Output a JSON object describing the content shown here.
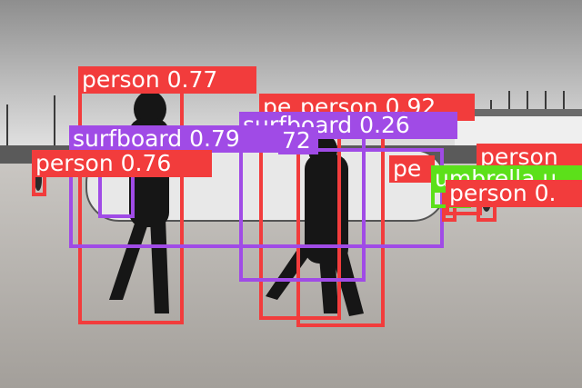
{
  "image": {
    "description_mode": "photo",
    "tone": "grayscale"
  },
  "colors": {
    "person": "#f23c3c",
    "surfboard": "#a04be6",
    "umbrella": "#5ce01a",
    "label_text": "#ffffff"
  },
  "detections": [
    {
      "class": "person",
      "score": "0.77",
      "text": "person 0.77"
    },
    {
      "class": "person",
      "score": "0.92",
      "text": "person 0.92"
    },
    {
      "class": "person",
      "score": "",
      "text": "pe"
    },
    {
      "class": "surfboard",
      "score": "0.26",
      "text": "surfboard 0.26"
    },
    {
      "class": "surfboard",
      "score": "0.79",
      "text": "surfboard 0.79"
    },
    {
      "class": "surfboard",
      "score": "",
      "text": "72"
    },
    {
      "class": "person",
      "score": "0.76",
      "text": "person 0.76"
    },
    {
      "class": "person",
      "score": "",
      "text": "pe"
    },
    {
      "class": "person",
      "score": "",
      "text": "person"
    },
    {
      "class": "umbrella",
      "score": "",
      "text": "umbrella u"
    },
    {
      "class": "person",
      "score": "",
      "text": "person 0."
    }
  ]
}
